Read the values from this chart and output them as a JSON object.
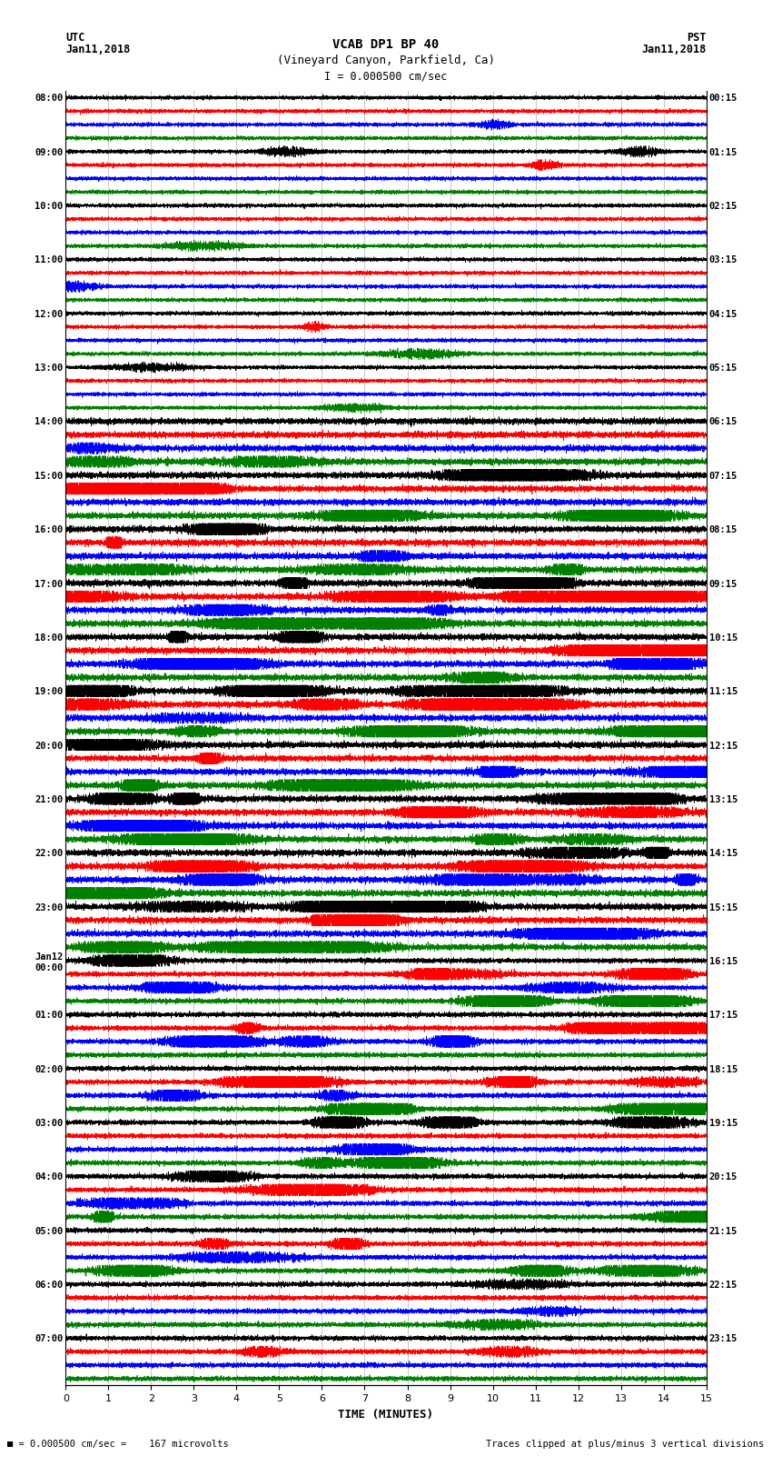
{
  "title_line1": "VCAB DP1 BP 40",
  "title_line2": "(Vineyard Canyon, Parkfield, Ca)",
  "scale_label": "I = 0.000500 cm/sec",
  "utc_label": "UTC",
  "utc_date": "Jan11,2018",
  "pst_label": "PST",
  "pst_date": "Jan11,2018",
  "xlabel": "TIME (MINUTES)",
  "footer_left": "= 0.000500 cm/sec =    167 microvolts",
  "footer_right": "Traces clipped at plus/minus 3 vertical divisions",
  "xlim": [
    0,
    15
  ],
  "xticks": [
    0,
    1,
    2,
    3,
    4,
    5,
    6,
    7,
    8,
    9,
    10,
    11,
    12,
    13,
    14,
    15
  ],
  "trace_colors": [
    "black",
    "red",
    "blue",
    "green"
  ],
  "utc_times": [
    "08:00",
    "09:00",
    "10:00",
    "11:00",
    "12:00",
    "13:00",
    "14:00",
    "15:00",
    "16:00",
    "17:00",
    "18:00",
    "19:00",
    "20:00",
    "21:00",
    "22:00",
    "23:00",
    "Jan12\n00:00",
    "01:00",
    "02:00",
    "03:00",
    "04:00",
    "05:00",
    "06:00",
    "07:00"
  ],
  "pst_times": [
    "00:15",
    "01:15",
    "02:15",
    "03:15",
    "04:15",
    "05:15",
    "06:15",
    "07:15",
    "08:15",
    "09:15",
    "10:15",
    "11:15",
    "12:15",
    "13:15",
    "14:15",
    "15:15",
    "16:15",
    "17:15",
    "18:15",
    "19:15",
    "20:15",
    "21:15",
    "22:15",
    "23:15"
  ],
  "bg_color": "white",
  "figsize": [
    8.5,
    16.13
  ],
  "n_hour_groups": 24,
  "n_traces_per_group": 4,
  "samples_per_minute": 500,
  "n_minutes": 15,
  "base_noise": 0.06,
  "row_clip": 0.42
}
